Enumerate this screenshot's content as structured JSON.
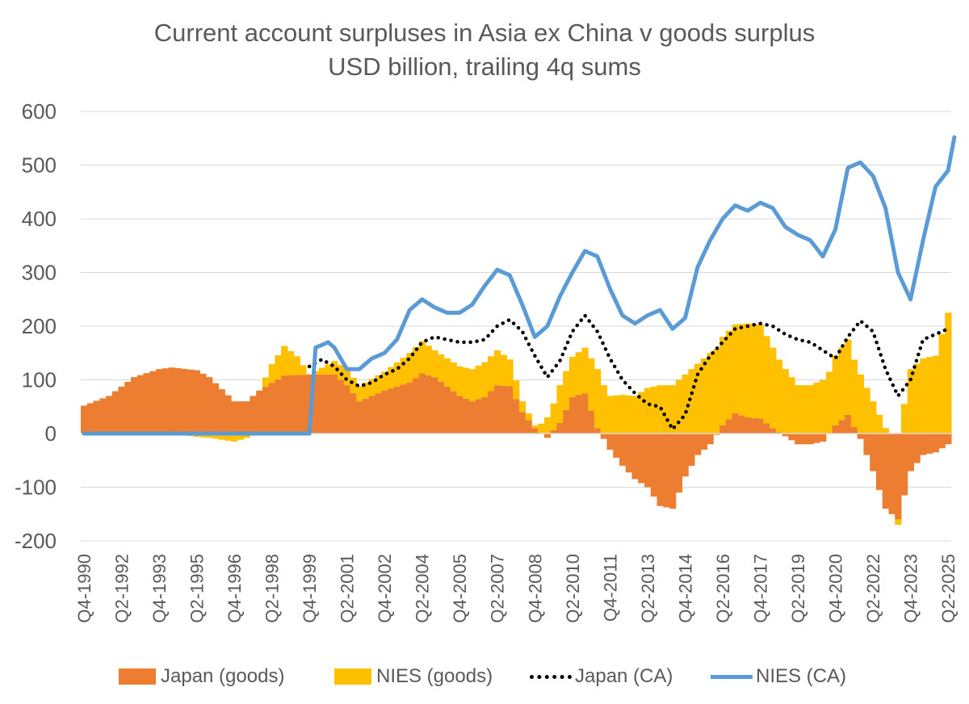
{
  "chart_data": {
    "type": "bar",
    "title": "Current account surpluses in Asia ex China v goods surplus",
    "subtitle": "USD billion, trailing 4q sums",
    "ylim": [
      -200,
      600
    ],
    "yticks": [
      600,
      500,
      400,
      300,
      200,
      100,
      0,
      -100,
      -200
    ],
    "grid": "horizontal",
    "legend_position": "bottom",
    "x_labels": [
      "Q4-1990",
      "Q2-1992",
      "Q4-1993",
      "Q2-1995",
      "Q4-1996",
      "Q2-1998",
      "Q4-1999",
      "Q2-2001",
      "Q4-2002",
      "Q2-2004",
      "Q4-2005",
      "Q2-2007",
      "Q4-2008",
      "Q2-2010",
      "Q4-2011",
      "Q2-2013",
      "Q4-2014",
      "Q2-2016",
      "Q4-2017",
      "Q2-2019",
      "Q4-2020",
      "Q2-2022",
      "Q4-2023",
      "Q2-2025"
    ],
    "x_start": "Q4-1990",
    "x_end": "Q2-2025",
    "series": [
      {
        "name": "Japan (goods)",
        "kind": "stacked-bar",
        "color": "#ED7D31",
        "anchors": [
          [
            "Q4-1990",
            52
          ],
          [
            "Q4-1991",
            70
          ],
          [
            "Q4-1992",
            105
          ],
          [
            "Q4-1993",
            120
          ],
          [
            "Q2-1994",
            123
          ],
          [
            "Q2-1995",
            118
          ],
          [
            "Q4-1995",
            105
          ],
          [
            "Q4-1996",
            60
          ],
          [
            "Q2-1997",
            60
          ],
          [
            "Q4-1997",
            80
          ],
          [
            "Q4-1998",
            108
          ],
          [
            "Q4-1999",
            110
          ],
          [
            "Q4-2000",
            110
          ],
          [
            "Q2-2001",
            90
          ],
          [
            "Q4-2001",
            60
          ],
          [
            "Q4-2002",
            80
          ],
          [
            "Q4-2003",
            95
          ],
          [
            "Q2-2004",
            112
          ],
          [
            "Q4-2004",
            105
          ],
          [
            "Q4-2005",
            70
          ],
          [
            "Q2-2006",
            60
          ],
          [
            "Q4-2006",
            68
          ],
          [
            "Q2-2007",
            90
          ],
          [
            "Q4-2007",
            88
          ],
          [
            "Q2-2008",
            40
          ],
          [
            "Q4-2008",
            10
          ],
          [
            "Q2-2009",
            -8
          ],
          [
            "Q4-2009",
            20
          ],
          [
            "Q2-2010",
            68
          ],
          [
            "Q4-2010",
            75
          ],
          [
            "Q2-2011",
            10
          ],
          [
            "Q4-2011",
            -30
          ],
          [
            "Q2-2012",
            -60
          ],
          [
            "Q4-2012",
            -85
          ],
          [
            "Q2-2013",
            -100
          ],
          [
            "Q4-2013",
            -135
          ],
          [
            "Q2-2014",
            -140
          ],
          [
            "Q4-2014",
            -80
          ],
          [
            "Q2-2015",
            -40
          ],
          [
            "Q4-2015",
            -20
          ],
          [
            "Q2-2016",
            15
          ],
          [
            "Q4-2016",
            38
          ],
          [
            "Q2-2017",
            30
          ],
          [
            "Q4-2017",
            28
          ],
          [
            "Q2-2018",
            10
          ],
          [
            "Q4-2018",
            -5
          ],
          [
            "Q2-2019",
            -20
          ],
          [
            "Q4-2019",
            -20
          ],
          [
            "Q2-2020",
            -15
          ],
          [
            "Q4-2020",
            15
          ],
          [
            "Q2-2021",
            35
          ],
          [
            "Q4-2021",
            -10
          ],
          [
            "Q2-2022",
            -70
          ],
          [
            "Q4-2022",
            -140
          ],
          [
            "Q2-2023",
            -160
          ],
          [
            "Q4-2023",
            -70
          ],
          [
            "Q2-2024",
            -40
          ],
          [
            "Q4-2024",
            -35
          ],
          [
            "Q2-2025",
            -20
          ]
        ]
      },
      {
        "name": "NIES (goods)",
        "kind": "stacked-bar",
        "color": "#FFC000",
        "anchors": [
          [
            "Q4-1990",
            0
          ],
          [
            "Q4-1993",
            0
          ],
          [
            "Q4-1994",
            -3
          ],
          [
            "Q2-1995",
            -6
          ],
          [
            "Q4-1995",
            -8
          ],
          [
            "Q4-1996",
            -15
          ],
          [
            "Q2-1997",
            -8
          ],
          [
            "Q4-1997",
            0
          ],
          [
            "Q2-1998",
            35
          ],
          [
            "Q4-1998",
            55
          ],
          [
            "Q2-1999",
            35
          ],
          [
            "Q4-1999",
            0
          ],
          [
            "Q4-2000",
            25
          ],
          [
            "Q2-2001",
            30
          ],
          [
            "Q4-2001",
            28
          ],
          [
            "Q4-2002",
            35
          ],
          [
            "Q4-2003",
            55
          ],
          [
            "Q2-2004",
            60
          ],
          [
            "Q4-2004",
            50
          ],
          [
            "Q4-2005",
            55
          ],
          [
            "Q2-2006",
            60
          ],
          [
            "Q4-2006",
            65
          ],
          [
            "Q2-2007",
            65
          ],
          [
            "Q4-2007",
            50
          ],
          [
            "Q2-2008",
            20
          ],
          [
            "Q4-2008",
            5
          ],
          [
            "Q2-2009",
            30
          ],
          [
            "Q4-2009",
            70
          ],
          [
            "Q2-2010",
            75
          ],
          [
            "Q4-2010",
            85
          ],
          [
            "Q2-2011",
            110
          ],
          [
            "Q4-2011",
            70
          ],
          [
            "Q2-2012",
            72
          ],
          [
            "Q4-2012",
            70
          ],
          [
            "Q2-2013",
            85
          ],
          [
            "Q4-2013",
            90
          ],
          [
            "Q2-2014",
            90
          ],
          [
            "Q4-2014",
            110
          ],
          [
            "Q2-2015",
            130
          ],
          [
            "Q4-2015",
            150
          ],
          [
            "Q2-2016",
            165
          ],
          [
            "Q4-2016",
            165
          ],
          [
            "Q2-2017",
            175
          ],
          [
            "Q4-2017",
            175
          ],
          [
            "Q2-2018",
            150
          ],
          [
            "Q4-2018",
            120
          ],
          [
            "Q2-2019",
            90
          ],
          [
            "Q4-2019",
            90
          ],
          [
            "Q2-2020",
            100
          ],
          [
            "Q4-2020",
            130
          ],
          [
            "Q2-2021",
            140
          ],
          [
            "Q4-2021",
            110
          ],
          [
            "Q2-2022",
            60
          ],
          [
            "Q4-2022",
            10
          ],
          [
            "Q2-2023",
            -10
          ],
          [
            "Q4-2023",
            120
          ],
          [
            "Q2-2024",
            140
          ],
          [
            "Q4-2024",
            145
          ],
          [
            "Q2-2025",
            225
          ]
        ]
      },
      {
        "name": "Japan (CA)",
        "kind": "dotted-line",
        "color": "#000000",
        "anchors": [
          [
            "Q4-1999",
            125
          ],
          [
            "Q2-2000",
            138
          ],
          [
            "Q4-2000",
            125
          ],
          [
            "Q2-2001",
            100
          ],
          [
            "Q4-2001",
            88
          ],
          [
            "Q2-2002",
            95
          ],
          [
            "Q4-2002",
            110
          ],
          [
            "Q2-2003",
            120
          ],
          [
            "Q4-2003",
            140
          ],
          [
            "Q2-2004",
            170
          ],
          [
            "Q4-2004",
            180
          ],
          [
            "Q2-2005",
            175
          ],
          [
            "Q4-2005",
            170
          ],
          [
            "Q2-2006",
            170
          ],
          [
            "Q4-2006",
            175
          ],
          [
            "Q2-2007",
            200
          ],
          [
            "Q4-2007",
            212
          ],
          [
            "Q2-2008",
            190
          ],
          [
            "Q4-2008",
            145
          ],
          [
            "Q2-2009",
            105
          ],
          [
            "Q4-2009",
            135
          ],
          [
            "Q2-2010",
            190
          ],
          [
            "Q4-2010",
            220
          ],
          [
            "Q2-2011",
            190
          ],
          [
            "Q4-2011",
            140
          ],
          [
            "Q2-2012",
            100
          ],
          [
            "Q4-2012",
            75
          ],
          [
            "Q2-2013",
            55
          ],
          [
            "Q4-2013",
            50
          ],
          [
            "Q2-2014",
            8
          ],
          [
            "Q4-2014",
            35
          ],
          [
            "Q2-2015",
            110
          ],
          [
            "Q4-2015",
            145
          ],
          [
            "Q2-2016",
            170
          ],
          [
            "Q4-2016",
            195
          ],
          [
            "Q2-2017",
            200
          ],
          [
            "Q4-2017",
            205
          ],
          [
            "Q2-2018",
            200
          ],
          [
            "Q4-2018",
            185
          ],
          [
            "Q2-2019",
            175
          ],
          [
            "Q4-2019",
            170
          ],
          [
            "Q2-2020",
            155
          ],
          [
            "Q4-2020",
            140
          ],
          [
            "Q2-2021",
            180
          ],
          [
            "Q4-2021",
            210
          ],
          [
            "Q2-2022",
            190
          ],
          [
            "Q4-2022",
            120
          ],
          [
            "Q2-2023",
            70
          ],
          [
            "Q4-2023",
            100
          ],
          [
            "Q2-2024",
            175
          ],
          [
            "Q4-2024",
            185
          ],
          [
            "Q2-2025",
            195
          ]
        ]
      },
      {
        "name": "NIES (CA)",
        "kind": "line",
        "color": "#5B9BD5",
        "anchors": [
          [
            "Q4-1990",
            0
          ],
          [
            "Q4-1999",
            0
          ],
          [
            "Q1-2000",
            160
          ],
          [
            "Q2-2000",
            165
          ],
          [
            "Q3-2000",
            170
          ],
          [
            "Q4-2000",
            160
          ],
          [
            "Q2-2001",
            120
          ],
          [
            "Q4-2001",
            120
          ],
          [
            "Q2-2002",
            140
          ],
          [
            "Q4-2002",
            150
          ],
          [
            "Q2-2003",
            175
          ],
          [
            "Q4-2003",
            230
          ],
          [
            "Q2-2004",
            250
          ],
          [
            "Q4-2004",
            235
          ],
          [
            "Q2-2005",
            225
          ],
          [
            "Q4-2005",
            225
          ],
          [
            "Q2-2006",
            240
          ],
          [
            "Q4-2006",
            275
          ],
          [
            "Q2-2007",
            305
          ],
          [
            "Q4-2007",
            295
          ],
          [
            "Q2-2008",
            240
          ],
          [
            "Q4-2008",
            180
          ],
          [
            "Q2-2009",
            200
          ],
          [
            "Q4-2009",
            255
          ],
          [
            "Q2-2010",
            300
          ],
          [
            "Q4-2010",
            340
          ],
          [
            "Q2-2011",
            330
          ],
          [
            "Q4-2011",
            270
          ],
          [
            "Q2-2012",
            220
          ],
          [
            "Q4-2012",
            205
          ],
          [
            "Q2-2013",
            220
          ],
          [
            "Q4-2013",
            230
          ],
          [
            "Q2-2014",
            195
          ],
          [
            "Q4-2014",
            215
          ],
          [
            "Q2-2015",
            310
          ],
          [
            "Q4-2015",
            360
          ],
          [
            "Q2-2016",
            400
          ],
          [
            "Q4-2016",
            425
          ],
          [
            "Q2-2017",
            415
          ],
          [
            "Q4-2017",
            430
          ],
          [
            "Q2-2018",
            420
          ],
          [
            "Q4-2018",
            385
          ],
          [
            "Q2-2019",
            370
          ],
          [
            "Q4-2019",
            360
          ],
          [
            "Q2-2020",
            330
          ],
          [
            "Q4-2020",
            380
          ],
          [
            "Q2-2021",
            495
          ],
          [
            "Q4-2021",
            505
          ],
          [
            "Q2-2022",
            480
          ],
          [
            "Q4-2022",
            420
          ],
          [
            "Q2-2023",
            300
          ],
          [
            "Q4-2023",
            250
          ],
          [
            "Q2-2024",
            360
          ],
          [
            "Q4-2024",
            460
          ],
          [
            "Q2-2025",
            490
          ],
          [
            "Q3-2025",
            552
          ]
        ]
      }
    ]
  }
}
